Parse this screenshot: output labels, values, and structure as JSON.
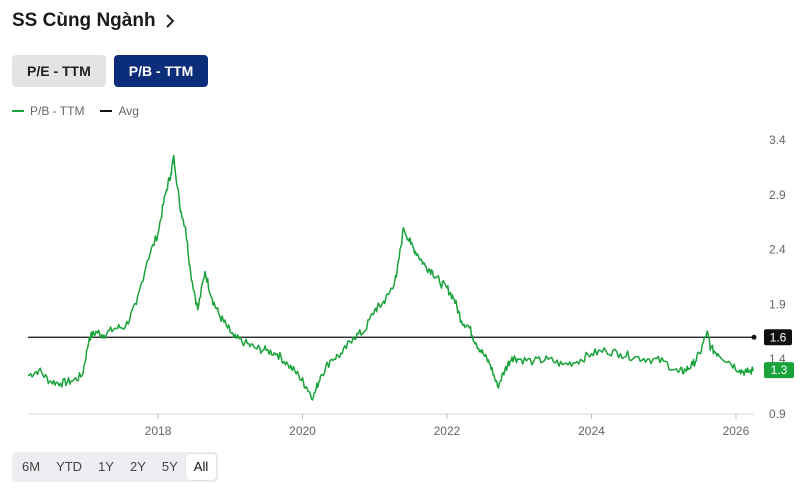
{
  "header": {
    "title": "SS Cùng Ngành",
    "chevron_icon": "chevron-right-icon"
  },
  "tabs": [
    {
      "label": "P/E - TTM",
      "active": false
    },
    {
      "label": "P/B - TTM",
      "active": true
    }
  ],
  "legend": [
    {
      "label": "P/B - TTM",
      "color": "#1aa33a"
    },
    {
      "label": "Avg",
      "color": "#111111"
    }
  ],
  "ranges": [
    {
      "label": "6M",
      "active": false
    },
    {
      "label": "YTD",
      "active": false
    },
    {
      "label": "1Y",
      "active": false
    },
    {
      "label": "2Y",
      "active": false
    },
    {
      "label": "5Y",
      "active": false
    },
    {
      "label": "All",
      "active": true
    }
  ],
  "chart_data": {
    "type": "line",
    "x_ticks": [
      "2018",
      "2020",
      "2022",
      "2024",
      "2026"
    ],
    "x_range": [
      2016.2,
      2026.25
    ],
    "y_ticks": [
      0.9,
      1.4,
      1.9,
      2.4,
      2.9,
      3.4
    ],
    "ylim": [
      0.9,
      3.4
    ],
    "avg": {
      "value": 1.6,
      "label": "1.6",
      "color": "#111111"
    },
    "last": {
      "value": 1.3,
      "label": "1.3",
      "color": "#1aa33a"
    },
    "series": [
      {
        "name": "P/B - TTM",
        "color": "#1aa33a",
        "x": [
          2016.2,
          2016.35,
          2016.5,
          2016.65,
          2016.8,
          2016.95,
          2017.05,
          2017.15,
          2017.25,
          2017.4,
          2017.55,
          2017.7,
          2017.85,
          2018.0,
          2018.1,
          2018.18,
          2018.22,
          2018.3,
          2018.38,
          2018.45,
          2018.55,
          2018.65,
          2018.75,
          2018.85,
          2018.95,
          2019.05,
          2019.2,
          2019.35,
          2019.5,
          2019.65,
          2019.8,
          2019.95,
          2020.05,
          2020.15,
          2020.25,
          2020.4,
          2020.55,
          2020.7,
          2020.85,
          2021.0,
          2021.1,
          2021.2,
          2021.3,
          2021.4,
          2021.5,
          2021.6,
          2021.7,
          2021.8,
          2021.9,
          2022.0,
          2022.1,
          2022.2,
          2022.3,
          2022.4,
          2022.5,
          2022.6,
          2022.7,
          2022.8,
          2022.9,
          2023.0,
          2023.2,
          2023.4,
          2023.6,
          2023.8,
          2024.0,
          2024.2,
          2024.4,
          2024.6,
          2024.8,
          2025.0,
          2025.2,
          2025.3,
          2025.4,
          2025.5,
          2025.6,
          2025.65,
          2025.75,
          2025.9,
          2026.05,
          2026.15,
          2026.25
        ],
        "values": [
          1.25,
          1.3,
          1.2,
          1.18,
          1.2,
          1.25,
          1.6,
          1.65,
          1.62,
          1.68,
          1.7,
          1.9,
          2.3,
          2.55,
          2.9,
          3.1,
          3.25,
          2.8,
          2.6,
          2.2,
          1.85,
          2.2,
          1.95,
          1.8,
          1.7,
          1.6,
          1.55,
          1.5,
          1.48,
          1.45,
          1.35,
          1.25,
          1.15,
          1.05,
          1.25,
          1.4,
          1.45,
          1.6,
          1.65,
          1.85,
          1.9,
          2.0,
          2.15,
          2.6,
          2.45,
          2.35,
          2.25,
          2.2,
          2.1,
          2.05,
          1.95,
          1.75,
          1.7,
          1.55,
          1.45,
          1.35,
          1.15,
          1.3,
          1.42,
          1.4,
          1.38,
          1.4,
          1.35,
          1.38,
          1.45,
          1.48,
          1.45,
          1.42,
          1.4,
          1.38,
          1.28,
          1.3,
          1.35,
          1.45,
          1.65,
          1.5,
          1.45,
          1.38,
          1.3,
          1.28,
          1.3
        ]
      }
    ],
    "grid": false,
    "legend_position": "top-left"
  }
}
